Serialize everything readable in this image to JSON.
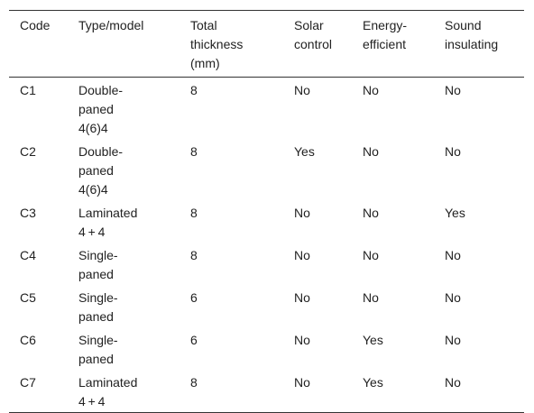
{
  "table": {
    "header": [
      "Code",
      "Type/model",
      "Total thickness (mm)",
      "Solar control",
      "Energy-efficient",
      "Sound insulating"
    ],
    "rows": [
      [
        "C1",
        "Double-paned 4(6)4",
        "8",
        "No",
        "No",
        "No"
      ],
      [
        "C2",
        "Double-paned 4(6)4",
        "8",
        "Yes",
        "No",
        "No"
      ],
      [
        "C3",
        "Laminated 4 + 4",
        "8",
        "No",
        "No",
        "Yes"
      ],
      [
        "C4",
        "Single-paned",
        "8",
        "No",
        "No",
        "No"
      ],
      [
        "C5",
        "Single-paned",
        "6",
        "No",
        "No",
        "No"
      ],
      [
        "C6",
        "Single-paned",
        "6",
        "No",
        "Yes",
        "No"
      ],
      [
        "C7",
        "Laminated 4 + 4",
        "8",
        "No",
        "Yes",
        "No"
      ]
    ]
  }
}
